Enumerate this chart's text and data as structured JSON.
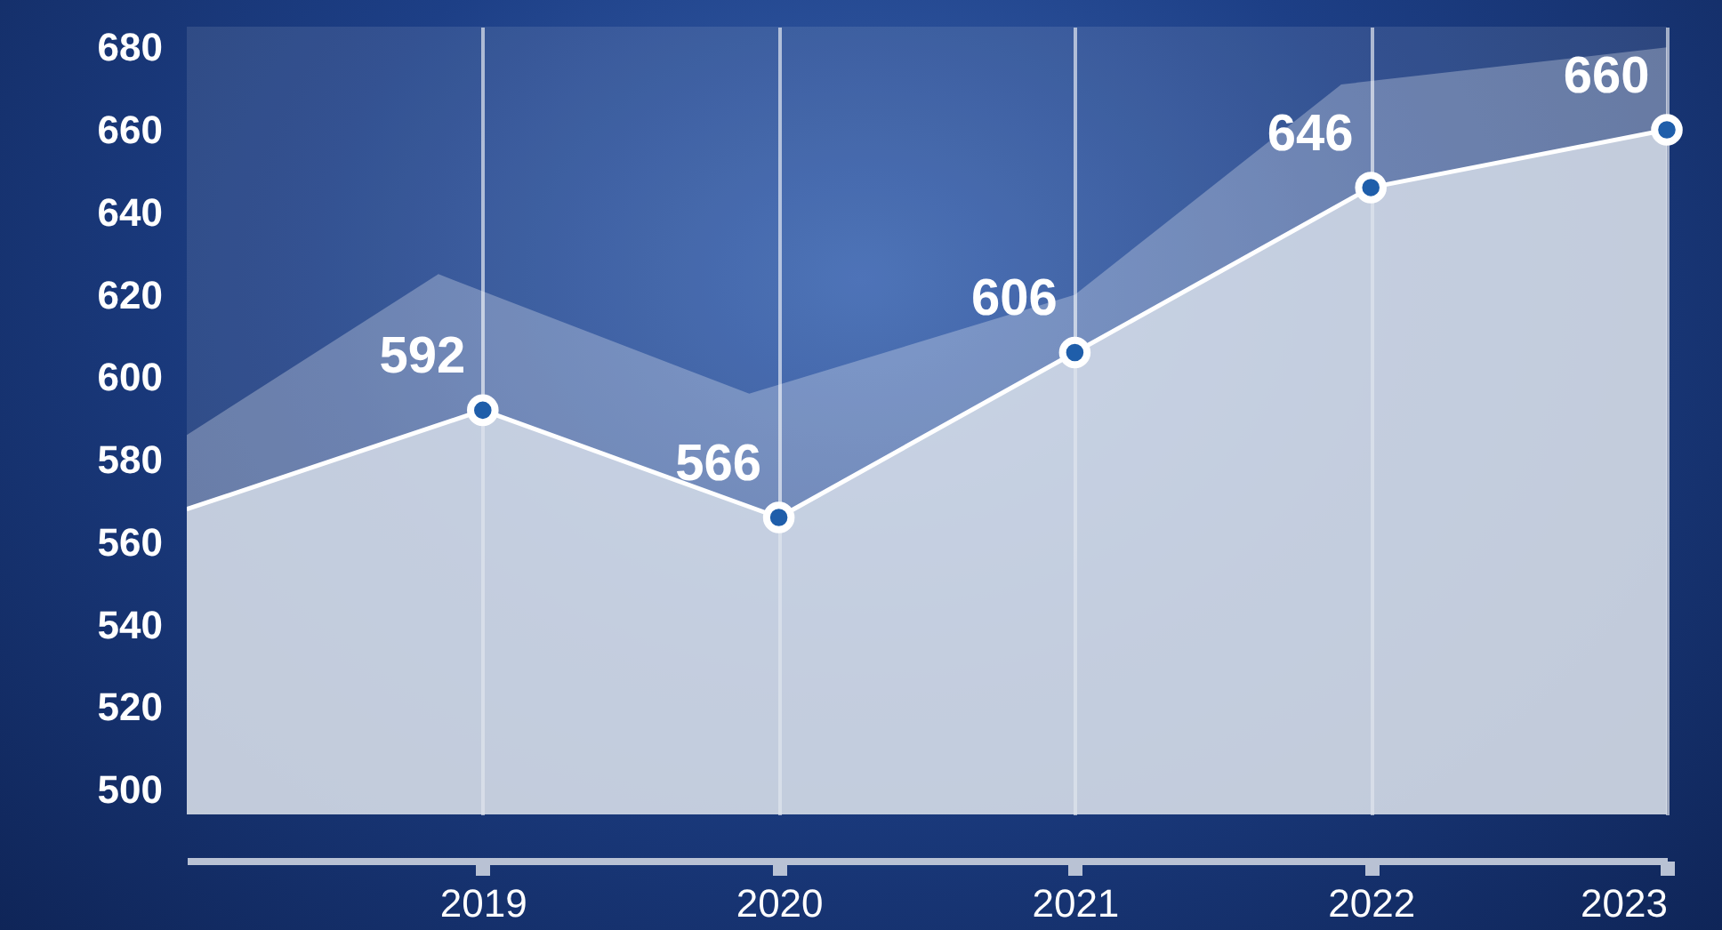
{
  "chart_data": {
    "type": "area",
    "x": [
      2018,
      2019,
      2020,
      2021,
      2022,
      2023
    ],
    "xlim": [
      2018,
      2023
    ],
    "xticks": [
      2019,
      2020,
      2021,
      2022,
      2023
    ],
    "ylim": [
      494,
      685
    ],
    "yticks": [
      500,
      520,
      540,
      560,
      580,
      600,
      620,
      640,
      660,
      680
    ],
    "grid": "x",
    "marker": "circle",
    "line_style": "solid",
    "series": [
      {
        "color": "#dde3ec",
        "values": [
          568,
          592,
          566,
          606,
          646,
          660
        ],
        "value_labels": [
          null,
          "592",
          "566",
          "606",
          "646",
          "660"
        ]
      },
      {
        "color": "#ffffff",
        "marker": "none",
        "x": [
          2018,
          2018.85,
          2019.9,
          2021,
          2021.9,
          2023
        ],
        "values": [
          586,
          625,
          596,
          620,
          671,
          680
        ]
      }
    ]
  }
}
